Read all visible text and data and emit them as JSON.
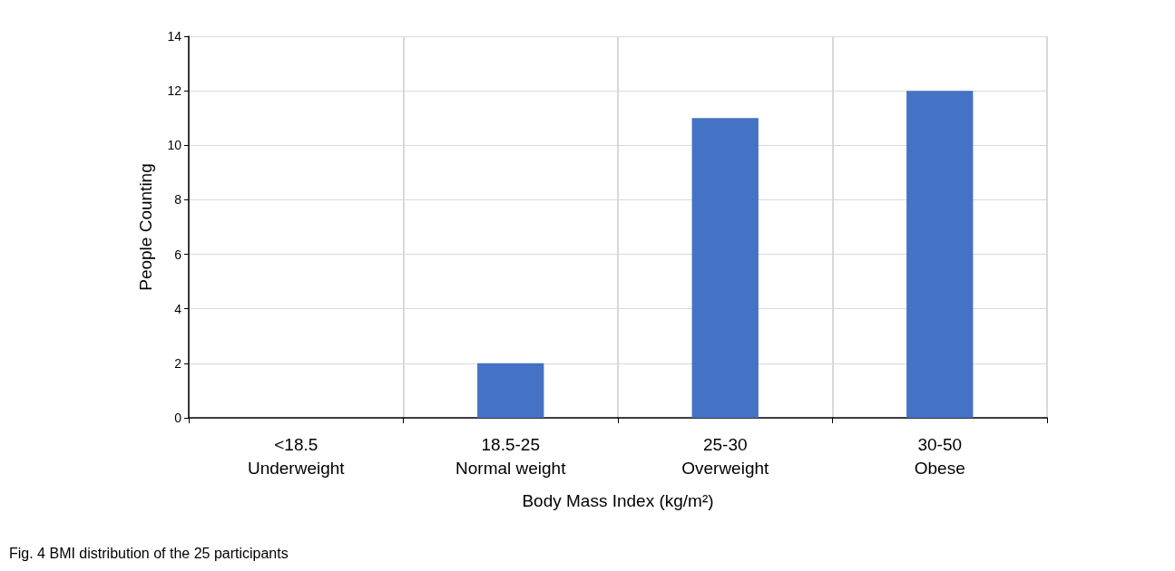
{
  "chart_data": {
    "type": "bar",
    "xlabel": "Body Mass Index (kg/m²)",
    "ylabel": "People Counting",
    "categories": [
      "<18.5\nUnderweight",
      "18.5-25\nNormal weight",
      "25-30\nOverweight",
      "30-50\nObese"
    ],
    "values": [
      0,
      2,
      11,
      12
    ],
    "color": "#4472c4",
    "ylim": [
      0,
      14
    ],
    "yticks": [
      0,
      2,
      4,
      6,
      8,
      10,
      12,
      14
    ],
    "grid": true,
    "annotations": [
      "Fig. 4 BMI distribution of the 25 participants"
    ]
  }
}
